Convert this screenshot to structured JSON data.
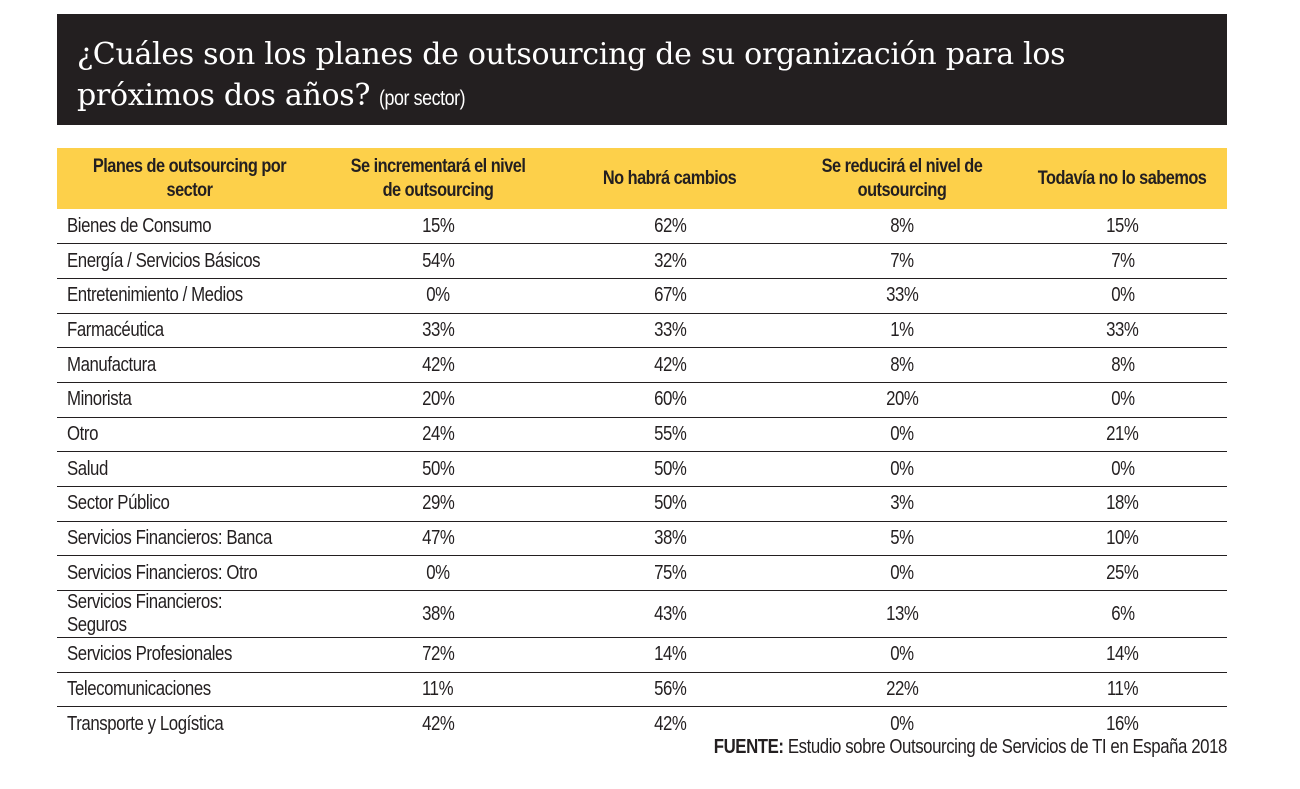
{
  "title": {
    "main": "¿Cuáles son los planes de outsourcing de su organización para los próximos dos años?",
    "line1": "¿Cuáles son los planes de outsourcing de su organización para los",
    "line2": "próximos dos años?",
    "subtitle": "(por sector)"
  },
  "colors": {
    "title_background": "#231f20",
    "header_background": "#fdd04a",
    "text": "#231f20"
  },
  "chart_data": {
    "type": "table",
    "title": "¿Cuáles son los planes de outsourcing de su organización para los próximos dos años? (por sector)",
    "columns": [
      "Planes de outsourcing por sector",
      "Se incrementará el nivel de outsourcing",
      "No habrá cambios",
      "Se reducirá el nivel de outsourcing",
      "Todavía no lo sabemos"
    ],
    "rows": [
      [
        "Bienes de Consumo",
        "15%",
        "62%",
        "8%",
        "15%"
      ],
      [
        "Energía / Servicios Básicos",
        "54%",
        "32%",
        "7%",
        "7%"
      ],
      [
        "Entretenimiento / Medios",
        "0%",
        "67%",
        "33%",
        "0%"
      ],
      [
        "Farmacéutica",
        "33%",
        "33%",
        "1%",
        "33%"
      ],
      [
        "Manufactura",
        "42%",
        "42%",
        "8%",
        "8%"
      ],
      [
        "Minorista",
        "20%",
        "60%",
        "20%",
        "0%"
      ],
      [
        "Otro",
        "24%",
        "55%",
        "0%",
        "21%"
      ],
      [
        "Salud",
        "50%",
        "50%",
        "0%",
        "0%"
      ],
      [
        "Sector Público",
        "29%",
        "50%",
        "3%",
        "18%"
      ],
      [
        "Servicios Financieros: Banca",
        "47%",
        "38%",
        "5%",
        "10%"
      ],
      [
        "Servicios Financieros: Otro",
        "0%",
        "75%",
        "0%",
        "25%"
      ],
      [
        "Servicios Financieros: Seguros",
        "38%",
        "43%",
        "13%",
        "6%"
      ],
      [
        "Servicios Profesionales",
        "72%",
        "14%",
        "0%",
        "14%"
      ],
      [
        "Telecomunicaciones",
        "11%",
        "56%",
        "22%",
        "11%"
      ],
      [
        "Transporte y Logística",
        "42%",
        "42%",
        "0%",
        "16%"
      ]
    ],
    "source_label": "FUENTE:",
    "source_text": "Estudio sobre Outsourcing de Servicios de TI en España 2018"
  },
  "source": {
    "label": "FUENTE:",
    "text": "Estudio sobre Outsourcing de Servicios de TI en España 2018"
  }
}
